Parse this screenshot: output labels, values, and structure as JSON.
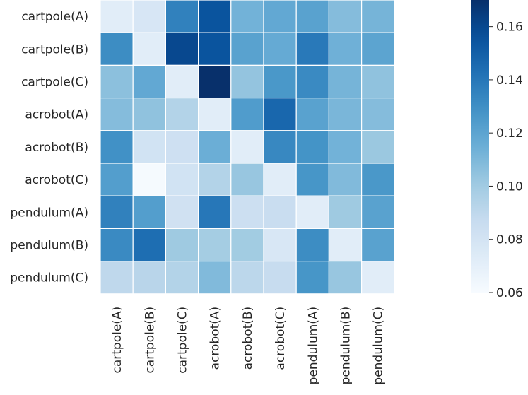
{
  "chart_data": {
    "type": "heatmap",
    "title": "",
    "xlabel": "",
    "ylabel": "",
    "row_labels": [
      "cartpole(A)",
      "cartpole(B)",
      "cartpole(C)",
      "acrobot(A)",
      "acrobot(B)",
      "acrobot(C)",
      "pendulum(A)",
      "pendulum(B)",
      "pendulum(C)"
    ],
    "col_labels": [
      "cartpole(A)",
      "cartpole(B)",
      "cartpole(C)",
      "acrobot(A)",
      "acrobot(B)",
      "acrobot(C)",
      "pendulum(A)",
      "pendulum(B)",
      "pendulum(C)"
    ],
    "values": [
      [
        0.072,
        0.078,
        0.136,
        0.155,
        0.113,
        0.118,
        0.121,
        0.108,
        0.112
      ],
      [
        0.131,
        0.072,
        0.16,
        0.155,
        0.121,
        0.117,
        0.139,
        0.114,
        0.12
      ],
      [
        0.106,
        0.118,
        0.072,
        0.17,
        0.104,
        0.126,
        0.132,
        0.112,
        0.105
      ],
      [
        0.108,
        0.105,
        0.094,
        0.072,
        0.124,
        0.147,
        0.121,
        0.111,
        0.108
      ],
      [
        0.129,
        0.081,
        0.083,
        0.115,
        0.072,
        0.133,
        0.128,
        0.113,
        0.102
      ],
      [
        0.123,
        0.061,
        0.081,
        0.094,
        0.103,
        0.072,
        0.127,
        0.109,
        0.126
      ],
      [
        0.136,
        0.123,
        0.082,
        0.14,
        0.084,
        0.086,
        0.072,
        0.101,
        0.121
      ],
      [
        0.132,
        0.144,
        0.101,
        0.099,
        0.1,
        0.077,
        0.131,
        0.072,
        0.121
      ],
      [
        0.09,
        0.092,
        0.094,
        0.109,
        0.091,
        0.087,
        0.127,
        0.103,
        0.072
      ]
    ],
    "vmin": 0.06,
    "vmax": 0.17,
    "colormap": "Blues",
    "colorbar_ticks": [
      0.06,
      0.08,
      0.1,
      0.12,
      0.14,
      0.16
    ],
    "colorbar_tick_labels": [
      "0.06",
      "0.08",
      "0.10",
      "0.12",
      "0.14",
      "0.16"
    ],
    "grid": true
  }
}
